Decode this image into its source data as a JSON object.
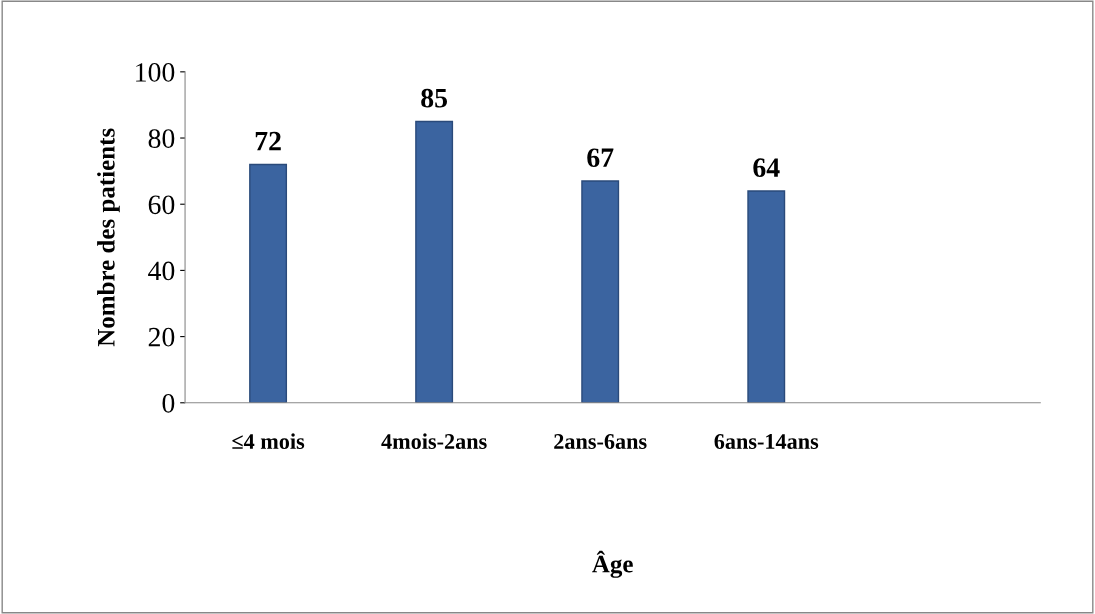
{
  "chart_data": {
    "type": "bar",
    "xlabel": "Âge",
    "ylabel": "Nombre des patients",
    "categories": [
      "≤4 mois",
      "4mois-2ans",
      "2ans-6ans",
      "6ans-14ans",
      null
    ],
    "values": [
      72,
      85,
      67,
      64,
      null
    ],
    "color": "#3b64a0",
    "ylim": [
      0,
      100
    ],
    "yticks": [
      0,
      20,
      40,
      60,
      80,
      100
    ],
    "grid": false,
    "data_labels": true
  }
}
